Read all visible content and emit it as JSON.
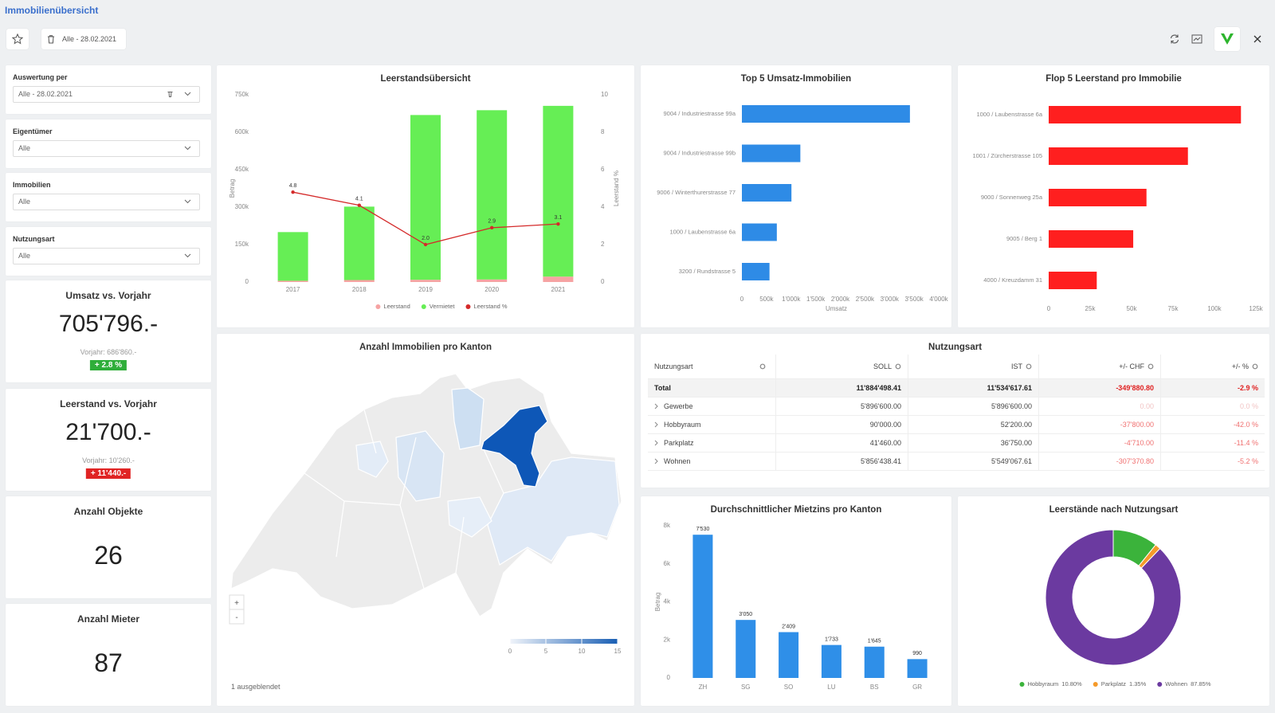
{
  "header": {
    "title": "Immobilienübersicht",
    "date_chip": "Alle - 28.02.2021"
  },
  "filters": [
    {
      "label": "Auswertung per",
      "value": "Alle - 28.02.2021"
    },
    {
      "label": "Eigentümer",
      "value": "Alle"
    },
    {
      "label": "Immobilien",
      "value": "Alle"
    },
    {
      "label": "Nutzungsart",
      "value": "Alle"
    }
  ],
  "kpis": [
    {
      "title": "Umsatz vs. Vorjahr",
      "value": "705'796.-",
      "previous": "Vorjahr: 686'860.-",
      "change": "+ 2.8 %",
      "badge_color": "#2fae3a"
    },
    {
      "title": "Leerstand vs. Vorjahr",
      "value": "21'700.-",
      "previous": "Vorjahr: 10'260.-",
      "change": "+ 11'440.-",
      "badge_color": "#e02424"
    },
    {
      "title": "Anzahl Objekte",
      "value": "26"
    },
    {
      "title": "Anzahl Mieter",
      "value": "87"
    }
  ],
  "chart_data": [
    {
      "type": "combo",
      "title": "Leerstandsübersicht",
      "y_label": "Betrag",
      "y2_label": "Leerstand %",
      "categories": [
        "2017",
        "2018",
        "2019",
        "2020",
        "2021"
      ],
      "ylim": [
        0,
        750000
      ],
      "yticks": [
        0,
        {
          "value": 150000,
          "label": "150k"
        },
        {
          "value": 300000,
          "label": "300k"
        },
        {
          "value": 450000,
          "label": "450k"
        },
        {
          "value": 600000,
          "label": "600k"
        },
        {
          "value": 750000,
          "label": "750k"
        }
      ],
      "y2lim": [
        0,
        10
      ],
      "y2ticks": [
        0,
        2,
        4,
        6,
        8,
        10
      ],
      "stacked": true,
      "series": [
        {
          "name": "Leerstand",
          "type": "bar",
          "color": "#f6a3a3",
          "values": [
            5000,
            8000,
            9000,
            10260,
            21700
          ]
        },
        {
          "name": "Vermietet",
          "type": "bar",
          "color": "#66ee55",
          "values": [
            195000,
            294000,
            660000,
            678000,
            684000
          ]
        },
        {
          "name": "Leerstand %",
          "type": "line",
          "axis": "y2",
          "color": "#d42a2a",
          "values": [
            4.8,
            4.1,
            2.0,
            2.9,
            3.1
          ],
          "value_labels": [
            "4.8",
            "4.1",
            "2.0",
            "2.9",
            "3.1"
          ]
        }
      ]
    },
    {
      "type": "hbar",
      "title": "Top 5 Umsatz-Immobilien",
      "x_label": "Umsatz",
      "categories": [
        "9004 / Industriestrasse 99a",
        "9004 / Industriestrasse 99b",
        "9006 / Winterthurerstrasse 77",
        "1000 / Laubenstrasse 6a",
        "3200 / Rundstrasse 5"
      ],
      "values": [
        3415000,
        1188000,
        1007000,
        710000,
        561000
      ],
      "color": "#2e8be6",
      "xlim": [
        0,
        4000000
      ],
      "xticks": [
        0,
        {
          "value": 500000,
          "label": "500k"
        },
        {
          "value": 1000000,
          "label": "1'000k"
        },
        {
          "value": 1500000,
          "label": "1'500k"
        },
        {
          "value": 2000000,
          "label": "2'000k"
        },
        {
          "value": 2500000,
          "label": "2'500k"
        },
        {
          "value": 3000000,
          "label": "3'000k"
        },
        {
          "value": 3500000,
          "label": "3'500k"
        },
        {
          "value": 4000000,
          "label": "4'000k"
        }
      ]
    },
    {
      "type": "hbar",
      "title": "Flop 5 Leerstand pro Immobilie",
      "categories": [
        "1000 / Laubenstrasse 6a",
        "1001 / Zürcherstrasse 105",
        "9000 / Sonnenweg 25a",
        "9005 / Berg 1",
        "4000 / Kreuzdamm 31"
      ],
      "values": [
        116000,
        84000,
        59000,
        51000,
        29000
      ],
      "color": "#ff1f1f",
      "xlim": [
        0,
        125000
      ],
      "xticks": [
        0,
        {
          "value": 25000,
          "label": "25k"
        },
        {
          "value": 50000,
          "label": "50k"
        },
        {
          "value": 75000,
          "label": "75k"
        },
        {
          "value": 100000,
          "label": "100k"
        },
        {
          "value": 125000,
          "label": "125k"
        }
      ]
    },
    {
      "type": "bar",
      "title": "Durchschnittlicher Mietzins pro Kanton",
      "y_label": "Betrag",
      "categories": [
        "ZH",
        "SG",
        "SO",
        "LU",
        "BS",
        "GR"
      ],
      "values": [
        7530,
        3050,
        2409,
        1733,
        1645,
        990
      ],
      "value_labels": [
        "7'530",
        "3'050",
        "2'409",
        "1'733",
        "1'645",
        "990"
      ],
      "color": "#2f8fe8",
      "ylim": [
        0,
        8000
      ],
      "yticks": [
        0,
        {
          "value": 2000,
          "label": "2k"
        },
        {
          "value": 4000,
          "label": "4k"
        },
        {
          "value": 6000,
          "label": "6k"
        },
        {
          "value": 8000,
          "label": "8k"
        }
      ]
    },
    {
      "type": "donut",
      "title": "Leerstände nach Nutzungsart",
      "categories": [
        "Hobbyraum",
        "Parkplatz",
        "Wohnen"
      ],
      "values": [
        10.8,
        1.35,
        87.85
      ],
      "value_labels": [
        "10.80%",
        "1.35%",
        "87.85%"
      ],
      "colors": [
        "#3bb33b",
        "#f59a2a",
        "#6b3aa0"
      ]
    }
  ],
  "map": {
    "title": "Anzahl Immobilien pro Kanton",
    "scale_range": [
      0,
      15
    ],
    "scale_ticks": [
      0,
      5,
      10,
      15
    ],
    "note": "1 ausgeblendet",
    "zoom_in": "+",
    "zoom_out": "-"
  },
  "table": {
    "title": "Nutzungsart",
    "columns": [
      "Nutzungsart",
      "SOLL",
      "IST",
      "+/- CHF",
      "+/- %"
    ],
    "rows": [
      [
        "Total",
        "11'884'498.41",
        "11'534'617.61",
        "-349'880.80",
        "-2.9 %"
      ],
      [
        "Gewerbe",
        "5'896'600.00",
        "5'896'600.00",
        "0.00",
        "0.0 %"
      ],
      [
        "Hobbyraum",
        "90'000.00",
        "52'200.00",
        "-37'800.00",
        "-42.0 %"
      ],
      [
        "Parkplatz",
        "41'460.00",
        "36'750.00",
        "-4'710.00",
        "-11.4 %"
      ],
      [
        "Wohnen",
        "5'856'438.41",
        "5'549'067.61",
        "-307'370.80",
        "-5.2 %"
      ]
    ]
  }
}
